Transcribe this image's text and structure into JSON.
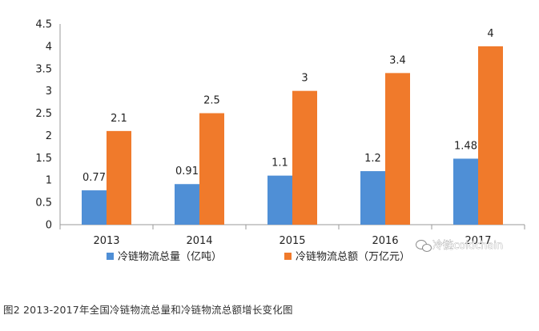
{
  "chart_data": {
    "type": "bar",
    "categories": [
      "2013",
      "2014",
      "2015",
      "2016",
      "2017"
    ],
    "series": [
      {
        "name": "冷链物流总量（亿吨）",
        "values": [
          0.77,
          0.91,
          1.1,
          1.2,
          1.48
        ],
        "color": "#4F8FD6",
        "labels": [
          "0.77",
          "0.91",
          "1.1",
          "1.2",
          "1.48"
        ]
      },
      {
        "name": "冷链物流总额（万亿元）",
        "values": [
          2.1,
          2.5,
          3,
          3.4,
          4
        ],
        "color": "#F07A2B",
        "labels": [
          "2.1",
          "2.5",
          "3",
          "3.4",
          "4"
        ]
      }
    ],
    "yticks": [
      "0",
      "0.5",
      "1",
      "1.5",
      "2",
      "2.5",
      "3",
      "3.5",
      "4",
      "4.5"
    ],
    "ylim": [
      0,
      4.5
    ],
    "grid": false,
    "legend_position": "bottom"
  },
  "watermark": "冷链coldchain",
  "caption": "图2 2013-2017年全国冷链物流总量和冷链物流总额增长变化图"
}
